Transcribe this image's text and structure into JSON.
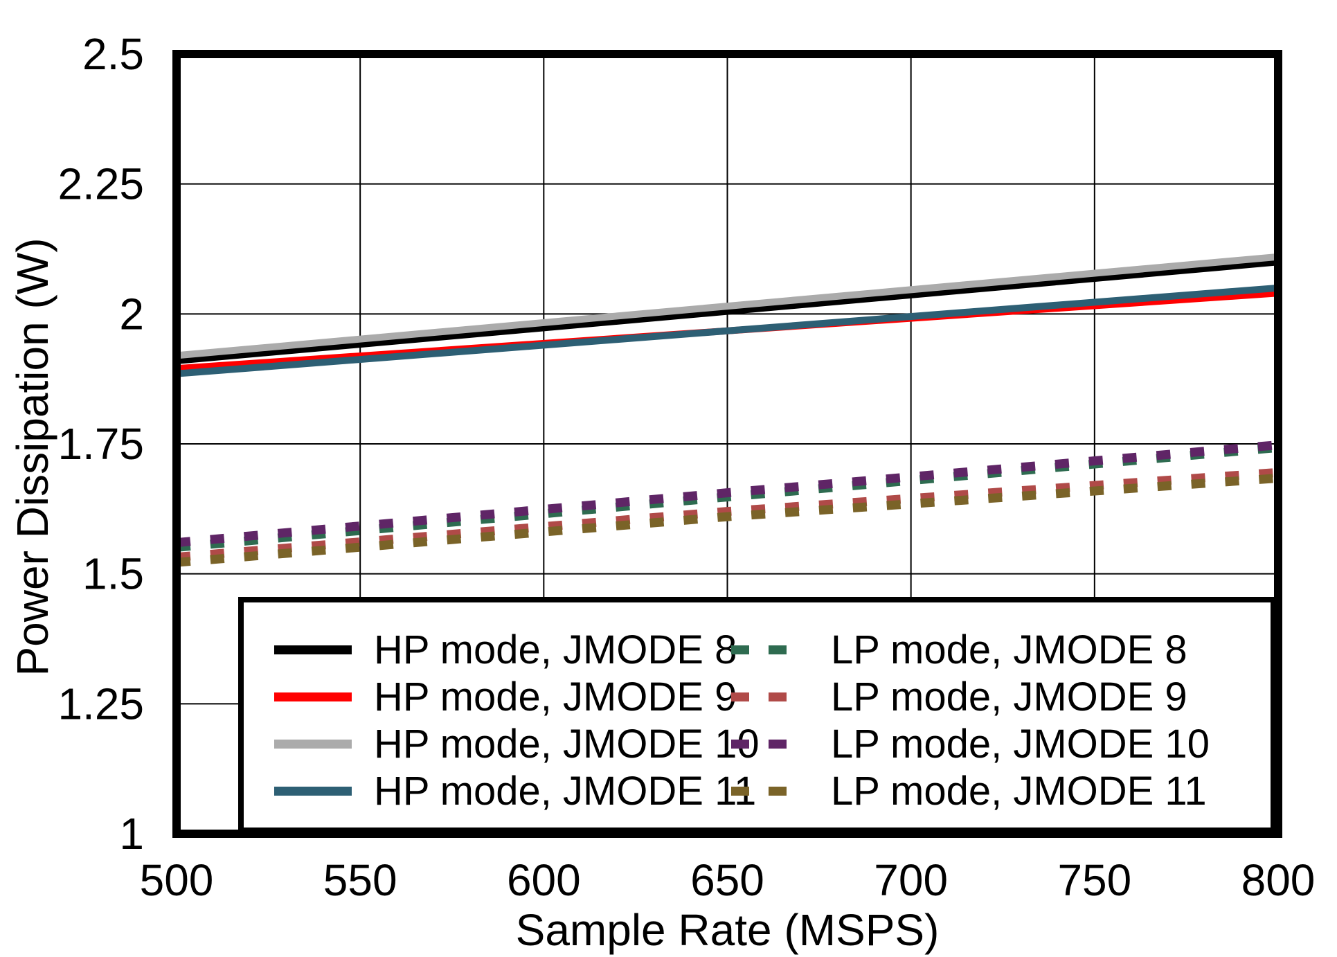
{
  "chart_data": {
    "type": "line",
    "title": "",
    "xlabel": "Sample Rate (MSPS)",
    "ylabel": "Power Dissipation (W)",
    "xlim": [
      500,
      800
    ],
    "ylim": [
      1,
      2.5
    ],
    "x_ticks": [
      500,
      550,
      600,
      650,
      700,
      750,
      800
    ],
    "y_ticks": [
      1,
      1.25,
      1.5,
      1.75,
      2,
      2.25,
      2.5
    ],
    "grid": true,
    "legend_position": "bottom-inside",
    "axis_color": "#000000",
    "grid_color": "#000000",
    "series": [
      {
        "name": "HP mode, JMODE 8",
        "color": "#000000",
        "style": "solid",
        "x": [
          500,
          800
        ],
        "y": [
          1.91,
          2.1
        ]
      },
      {
        "name": "HP mode, JMODE 9",
        "color": "#FF0000",
        "style": "solid",
        "x": [
          500,
          800
        ],
        "y": [
          1.895,
          2.04
        ]
      },
      {
        "name": "HP mode, JMODE 10",
        "color": "#ABABAB",
        "style": "solid",
        "x": [
          500,
          800
        ],
        "y": [
          1.92,
          2.11
        ]
      },
      {
        "name": "HP mode, JMODE 11",
        "color": "#2D5F74",
        "style": "solid",
        "x": [
          500,
          800
        ],
        "y": [
          1.885,
          2.05
        ]
      },
      {
        "name": "LP mode, JMODE 8",
        "color": "#2E6B50",
        "style": "dashed",
        "x": [
          500,
          650,
          800
        ],
        "y": [
          1.551,
          1.648,
          1.743
        ]
      },
      {
        "name": "LP mode, JMODE 9",
        "color": "#B04A48",
        "style": "dashed",
        "x": [
          500,
          650,
          800
        ],
        "y": [
          1.532,
          1.62,
          1.695
        ]
      },
      {
        "name": "LP mode, JMODE 10",
        "color": "#5F2566",
        "style": "dashed",
        "x": [
          500,
          650,
          800
        ],
        "y": [
          1.56,
          1.656,
          1.748
        ]
      },
      {
        "name": "LP mode, JMODE 11",
        "color": "#7A6328",
        "style": "dashed",
        "x": [
          500,
          650,
          800
        ],
        "y": [
          1.522,
          1.61,
          1.684
        ]
      }
    ],
    "legend_columns": [
      [
        0,
        1,
        2,
        3
      ],
      [
        4,
        5,
        6,
        7
      ]
    ]
  }
}
